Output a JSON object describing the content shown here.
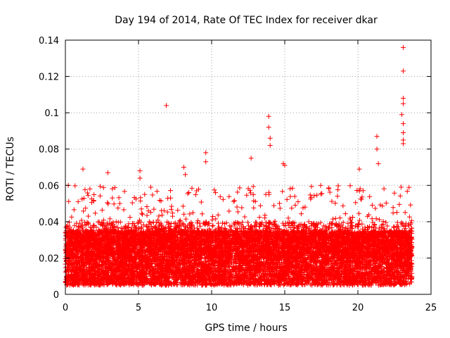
{
  "chart_data": {
    "type": "scatter",
    "title": "Day 194 of 2014, Rate Of TEC Index for receiver dkar",
    "xlabel": "GPS time / hours",
    "ylabel": "ROTI / TECUs",
    "xlim": [
      0,
      25
    ],
    "ylim": [
      0,
      0.14
    ],
    "xticks": [
      0,
      5,
      10,
      15,
      20,
      25
    ],
    "yticks": [
      0,
      0.02,
      0.04,
      0.06,
      0.08,
      0.1,
      0.12,
      0.14
    ],
    "xtick_labels": [
      "0",
      "5",
      "10",
      "15",
      "20",
      "25"
    ],
    "ytick_labels": [
      "0",
      "0.02",
      "0.04",
      "0.06",
      "0.08",
      "0.1",
      "0.12",
      "0.14"
    ],
    "grid": true,
    "marker": "+",
    "color": "#ff0000",
    "series": [
      {
        "name": "ROTI",
        "notable_points": [
          {
            "x": 6.9,
            "y": 0.104
          },
          {
            "x": 9.6,
            "y": 0.078
          },
          {
            "x": 9.6,
            "y": 0.073
          },
          {
            "x": 12.7,
            "y": 0.075
          },
          {
            "x": 13.9,
            "y": 0.098
          },
          {
            "x": 13.9,
            "y": 0.092
          },
          {
            "x": 14.0,
            "y": 0.086
          },
          {
            "x": 14.0,
            "y": 0.082
          },
          {
            "x": 21.3,
            "y": 0.087
          },
          {
            "x": 21.3,
            "y": 0.08
          },
          {
            "x": 21.4,
            "y": 0.072
          },
          {
            "x": 23.1,
            "y": 0.136
          },
          {
            "x": 23.1,
            "y": 0.123
          },
          {
            "x": 23.1,
            "y": 0.108
          },
          {
            "x": 23.1,
            "y": 0.105
          },
          {
            "x": 23.0,
            "y": 0.099
          },
          {
            "x": 23.1,
            "y": 0.094
          },
          {
            "x": 23.1,
            "y": 0.089
          },
          {
            "x": 23.1,
            "y": 0.085
          },
          {
            "x": 23.1,
            "y": 0.083
          },
          {
            "x": 5.1,
            "y": 0.068
          },
          {
            "x": 5.1,
            "y": 0.064
          },
          {
            "x": 8.1,
            "y": 0.07
          },
          {
            "x": 8.2,
            "y": 0.066
          },
          {
            "x": 1.2,
            "y": 0.069
          },
          {
            "x": 2.9,
            "y": 0.067
          },
          {
            "x": 0.2,
            "y": 0.06
          },
          {
            "x": 20.1,
            "y": 0.069
          },
          {
            "x": 14.9,
            "y": 0.072
          },
          {
            "x": 15.0,
            "y": 0.071
          }
        ],
        "bulk": {
          "x_range": [
            0,
            23.7
          ],
          "baseline_range": [
            0.005,
            0.035
          ],
          "typical_max": 0.06
        }
      }
    ]
  }
}
